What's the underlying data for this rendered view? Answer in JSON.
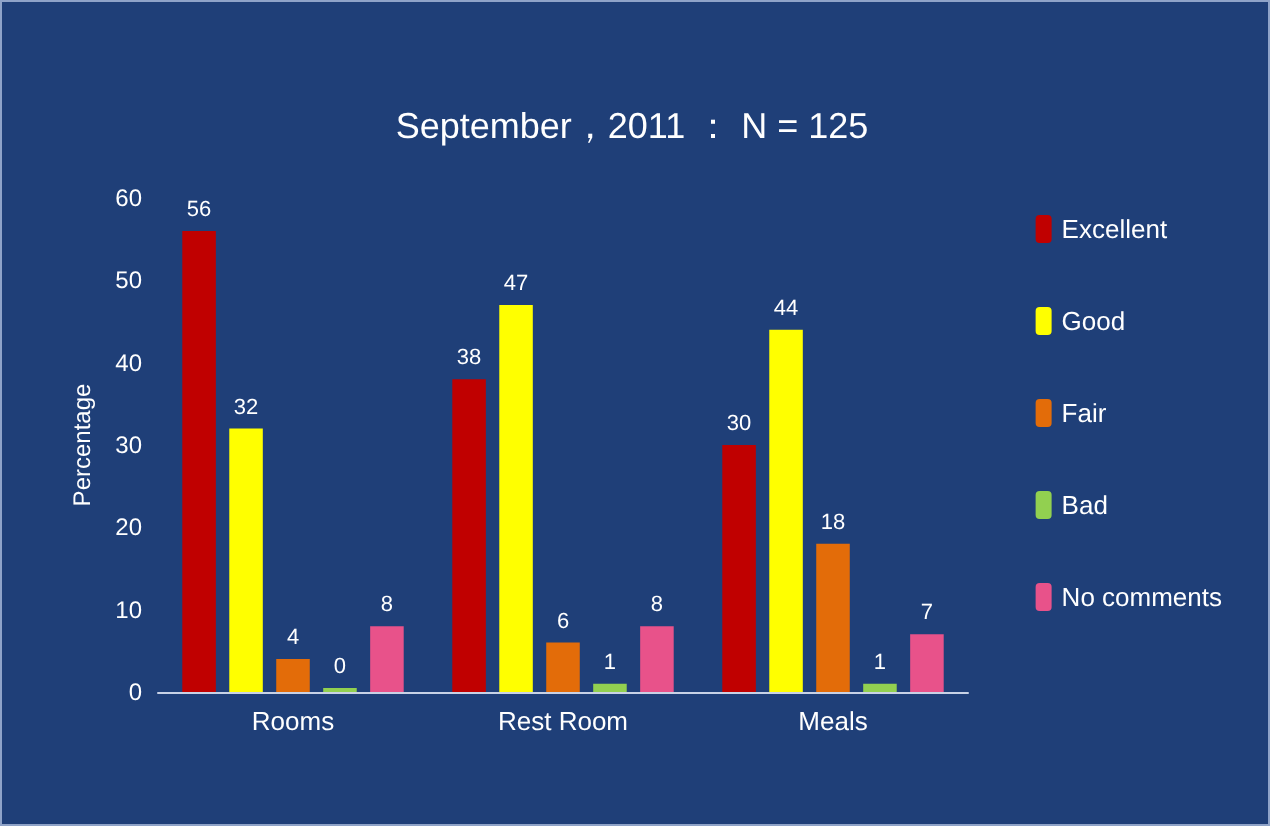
{
  "chart_data": {
    "type": "bar",
    "title": "September，2011 ： N = 125",
    "ylabel": "Percentage",
    "categories": [
      "Rooms",
      "Rest Room",
      "Meals"
    ],
    "series": [
      {
        "name": "Excellent",
        "color": "#c00000",
        "values": [
          56,
          38,
          30
        ]
      },
      {
        "name": "Good",
        "color": "#ffff00",
        "values": [
          32,
          47,
          44
        ]
      },
      {
        "name": "Fair",
        "color": "#e36c09",
        "values": [
          4,
          6,
          18
        ]
      },
      {
        "name": "Bad",
        "color": "#92d050",
        "values": [
          0,
          1,
          1
        ]
      },
      {
        "name": "No comments",
        "color": "#e8528a",
        "values": [
          8,
          8,
          7
        ]
      }
    ],
    "ylim": [
      0,
      60
    ],
    "yticks": [
      0,
      10,
      20,
      30,
      40,
      50,
      60
    ],
    "grid": false,
    "legend": "right",
    "data_labels": true
  }
}
